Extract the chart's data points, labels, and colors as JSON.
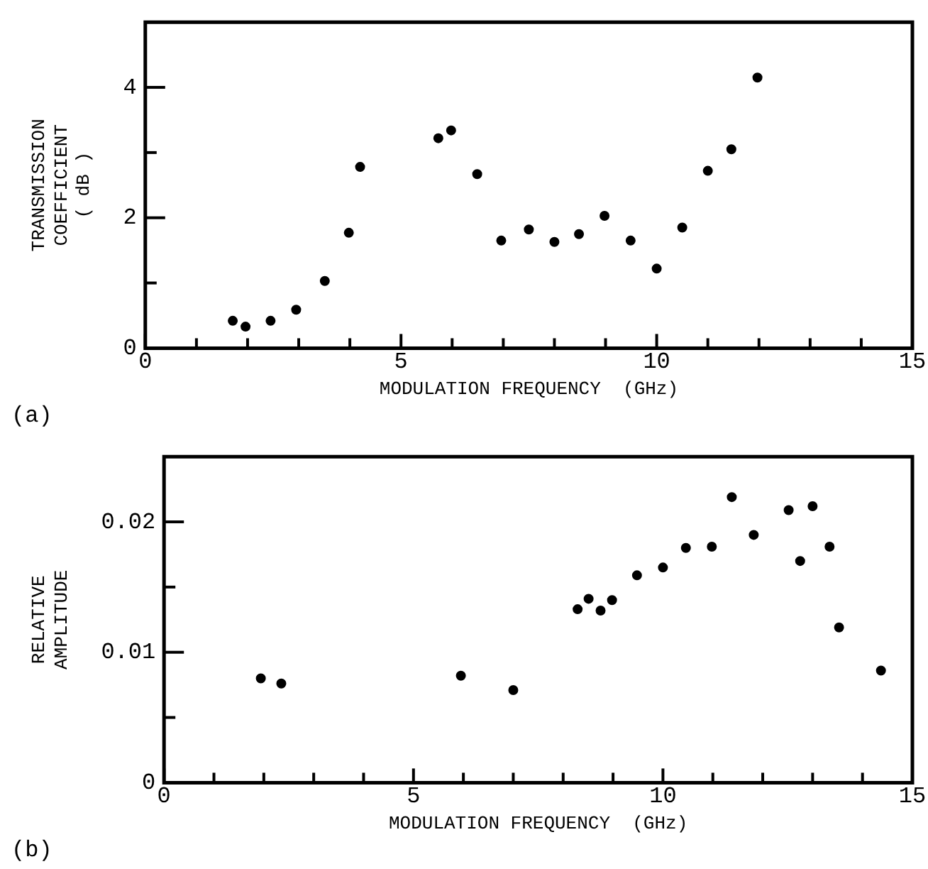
{
  "chart_data": [
    {
      "type": "scatter",
      "xlabel": "MODULATION FREQUENCY  (GHz)",
      "ylabel": "TRANSMISSION\nCOEFFICIENT\n( dB )",
      "annotations": [
        "(a)"
      ],
      "color": "#000000",
      "marker": "circle",
      "grid": false,
      "legend": false,
      "x": [
        1.71,
        1.96,
        2.45,
        2.95,
        3.51,
        3.98,
        4.2,
        5.73,
        5.98,
        6.49,
        6.96,
        7.5,
        8.0,
        8.48,
        8.98,
        9.49,
        10.0,
        10.5,
        11.0,
        11.46,
        11.97
      ],
      "values": [
        0.42,
        0.33,
        0.42,
        0.59,
        1.03,
        1.77,
        2.78,
        3.22,
        3.34,
        2.67,
        1.65,
        1.82,
        1.63,
        1.75,
        2.03,
        1.65,
        1.22,
        1.85,
        2.72,
        3.05,
        4.15
      ],
      "xlim": [
        0,
        15
      ],
      "xticks": [
        0,
        {
          "value": 1,
          "label": null
        },
        {
          "value": 2,
          "label": null
        },
        {
          "value": 3,
          "label": null
        },
        {
          "value": 4,
          "label": null
        },
        5,
        {
          "value": 6,
          "label": null
        },
        {
          "value": 7,
          "label": null
        },
        {
          "value": 8,
          "label": null
        },
        {
          "value": 9,
          "label": null
        },
        10,
        {
          "value": 11,
          "label": null
        },
        {
          "value": 12,
          "label": null
        },
        {
          "value": 13,
          "label": null
        },
        {
          "value": 14,
          "label": null
        },
        15
      ],
      "ylim": [
        0,
        5
      ],
      "yticks": [
        0,
        {
          "value": 1,
          "label": null
        },
        2,
        {
          "value": 3,
          "label": null
        },
        4
      ]
    },
    {
      "type": "scatter",
      "xlabel": "MODULATION FREQUENCY  (GHz)",
      "ylabel": "RELATIVE\nAMPLITUDE",
      "annotations": [
        "(b)"
      ],
      "color": "#000000",
      "marker": "circle",
      "grid": false,
      "legend": false,
      "x": [
        1.94,
        2.35,
        5.95,
        7.0,
        8.29,
        8.51,
        8.75,
        8.98,
        9.48,
        10.0,
        10.46,
        10.98,
        11.38,
        11.82,
        12.52,
        12.75,
        13.0,
        13.34,
        13.53,
        14.37
      ],
      "values": [
        0.008,
        0.0076,
        0.0082,
        0.0071,
        0.0133,
        0.0141,
        0.0132,
        0.014,
        0.0159,
        0.0165,
        0.018,
        0.0181,
        0.0219,
        0.019,
        0.0209,
        0.017,
        0.0212,
        0.0181,
        0.0119,
        0.0086
      ],
      "xlim": [
        0,
        15
      ],
      "xticks": [
        0,
        {
          "value": 1,
          "label": null
        },
        {
          "value": 2,
          "label": null
        },
        {
          "value": 3,
          "label": null
        },
        {
          "value": 4,
          "label": null
        },
        5,
        {
          "value": 6,
          "label": null
        },
        {
          "value": 7,
          "label": null
        },
        {
          "value": 8,
          "label": null
        },
        {
          "value": 9,
          "label": null
        },
        10,
        {
          "value": 11,
          "label": null
        },
        {
          "value": 12,
          "label": null
        },
        {
          "value": 13,
          "label": null
        },
        {
          "value": 14,
          "label": null
        },
        15
      ],
      "ylim": [
        0,
        0.025
      ],
      "yticks": [
        0,
        {
          "value": 0.005,
          "label": null
        },
        0.01,
        {
          "value": 0.015,
          "label": null
        },
        0.02
      ]
    }
  ]
}
